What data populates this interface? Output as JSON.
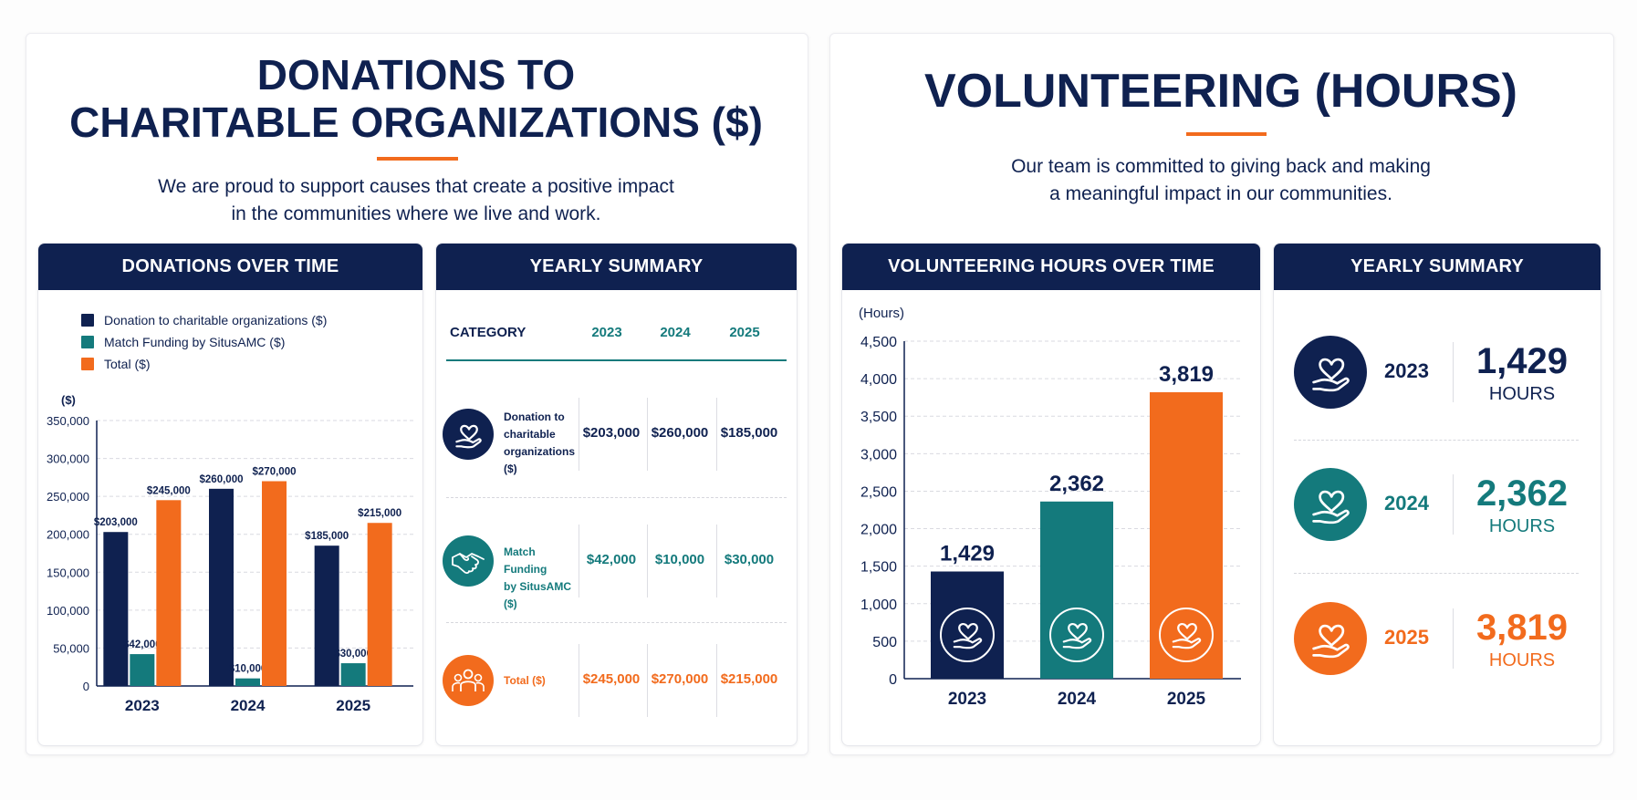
{
  "left": {
    "title_line1": "DONATIONS TO",
    "title_line2": "CHARITABLE ORGANIZATIONS ($)",
    "subtitle_line1": "We are proud to support causes that create a positive impact",
    "subtitle_line2": "in the communities where we live and work.",
    "chart_card_title": "DONATIONS OVER TIME",
    "summary_card_title": "YEARLY SUMMARY",
    "table": {
      "headers": [
        "CATEGORY",
        "2023",
        "2024",
        "2025"
      ],
      "rows": [
        {
          "label_lines": [
            "Donation to",
            "charitable",
            "organizations ($)"
          ],
          "icon": "heart-hand-icon",
          "values": [
            "$203,000",
            "$260,000",
            "$185,000"
          ]
        },
        {
          "label_lines": [
            "Match Funding",
            "by SitusAMC ($)"
          ],
          "icon": "handshake-icon",
          "values": [
            "$42,000",
            "$10,000",
            "$30,000"
          ]
        },
        {
          "label_lines": [
            "Total ($)"
          ],
          "icon": "people-icon",
          "values": [
            "$245,000",
            "$270,000",
            "$215,000"
          ]
        }
      ]
    }
  },
  "right": {
    "title": "VOLUNTEERING (HOURS)",
    "subtitle_line1": "Our team is committed to giving back and making",
    "subtitle_line2": "a meaningful impact in our communities.",
    "chart_card_title": "VOLUNTEERING HOURS OVER TIME",
    "summary_card_title": "YEARLY SUMMARY",
    "summary": [
      {
        "year": "2023",
        "value": "1,429",
        "unit": "HOURS",
        "color": "#0f2150"
      },
      {
        "year": "2024",
        "value": "2,362",
        "unit": "HOURS",
        "color": "#147a7c"
      },
      {
        "year": "2025",
        "value": "3,819",
        "unit": "HOURS",
        "color": "#f26b1d"
      }
    ]
  },
  "colors": {
    "navy": "#0f2150",
    "teal": "#147a7c",
    "orange": "#f26b1d"
  },
  "chart_data": [
    {
      "type": "bar",
      "categories": [
        "2023",
        "2024",
        "2025"
      ],
      "series": [
        {
          "name": "Donation to charitable organizations ($)",
          "values": [
            203000,
            260000,
            185000
          ],
          "labels": [
            "$203,000",
            "$260,000",
            "$185,000"
          ],
          "color": "#0f2150"
        },
        {
          "name": "Match Funding by SitusAMC ($)",
          "values": [
            42000,
            10000,
            30000
          ],
          "labels": [
            "$42,000",
            "$10,000",
            "$30,000"
          ],
          "color": "#147a7c"
        },
        {
          "name": "Total ($)",
          "values": [
            245000,
            270000,
            215000
          ],
          "labels": [
            "$245,000",
            "$270,000",
            "$215,000"
          ],
          "color": "#f26b1d"
        }
      ],
      "ylabel": "($)",
      "ylim": [
        0,
        350000
      ],
      "yticks": [
        0,
        50000,
        100000,
        150000,
        200000,
        250000,
        300000,
        350000
      ],
      "ytick_labels": [
        "0",
        "50,000",
        "100,000",
        "150,000",
        "200,000",
        "250,000",
        "300,000",
        "350,000"
      ],
      "grid": true,
      "legend": "top-left"
    },
    {
      "type": "bar",
      "categories": [
        "2023",
        "2024",
        "2025"
      ],
      "series": [
        {
          "values": [
            1429,
            2362,
            3819
          ],
          "labels": [
            "1,429",
            "2,362",
            "3,819"
          ],
          "colors": [
            "#0f2150",
            "#147a7c",
            "#f26b1d"
          ]
        }
      ],
      "ylabel": "(Hours)",
      "ylim": [
        0,
        4500
      ],
      "yticks": [
        0,
        500,
        1000,
        1500,
        2000,
        2500,
        3000,
        3500,
        4000,
        4500
      ],
      "ytick_labels": [
        "0",
        "500",
        "1,000",
        "1,500",
        "2,000",
        "2,500",
        "3,000",
        "3,500",
        "4,000",
        "4,500"
      ],
      "grid": true,
      "bar_icon": "heart-hand-icon"
    }
  ]
}
